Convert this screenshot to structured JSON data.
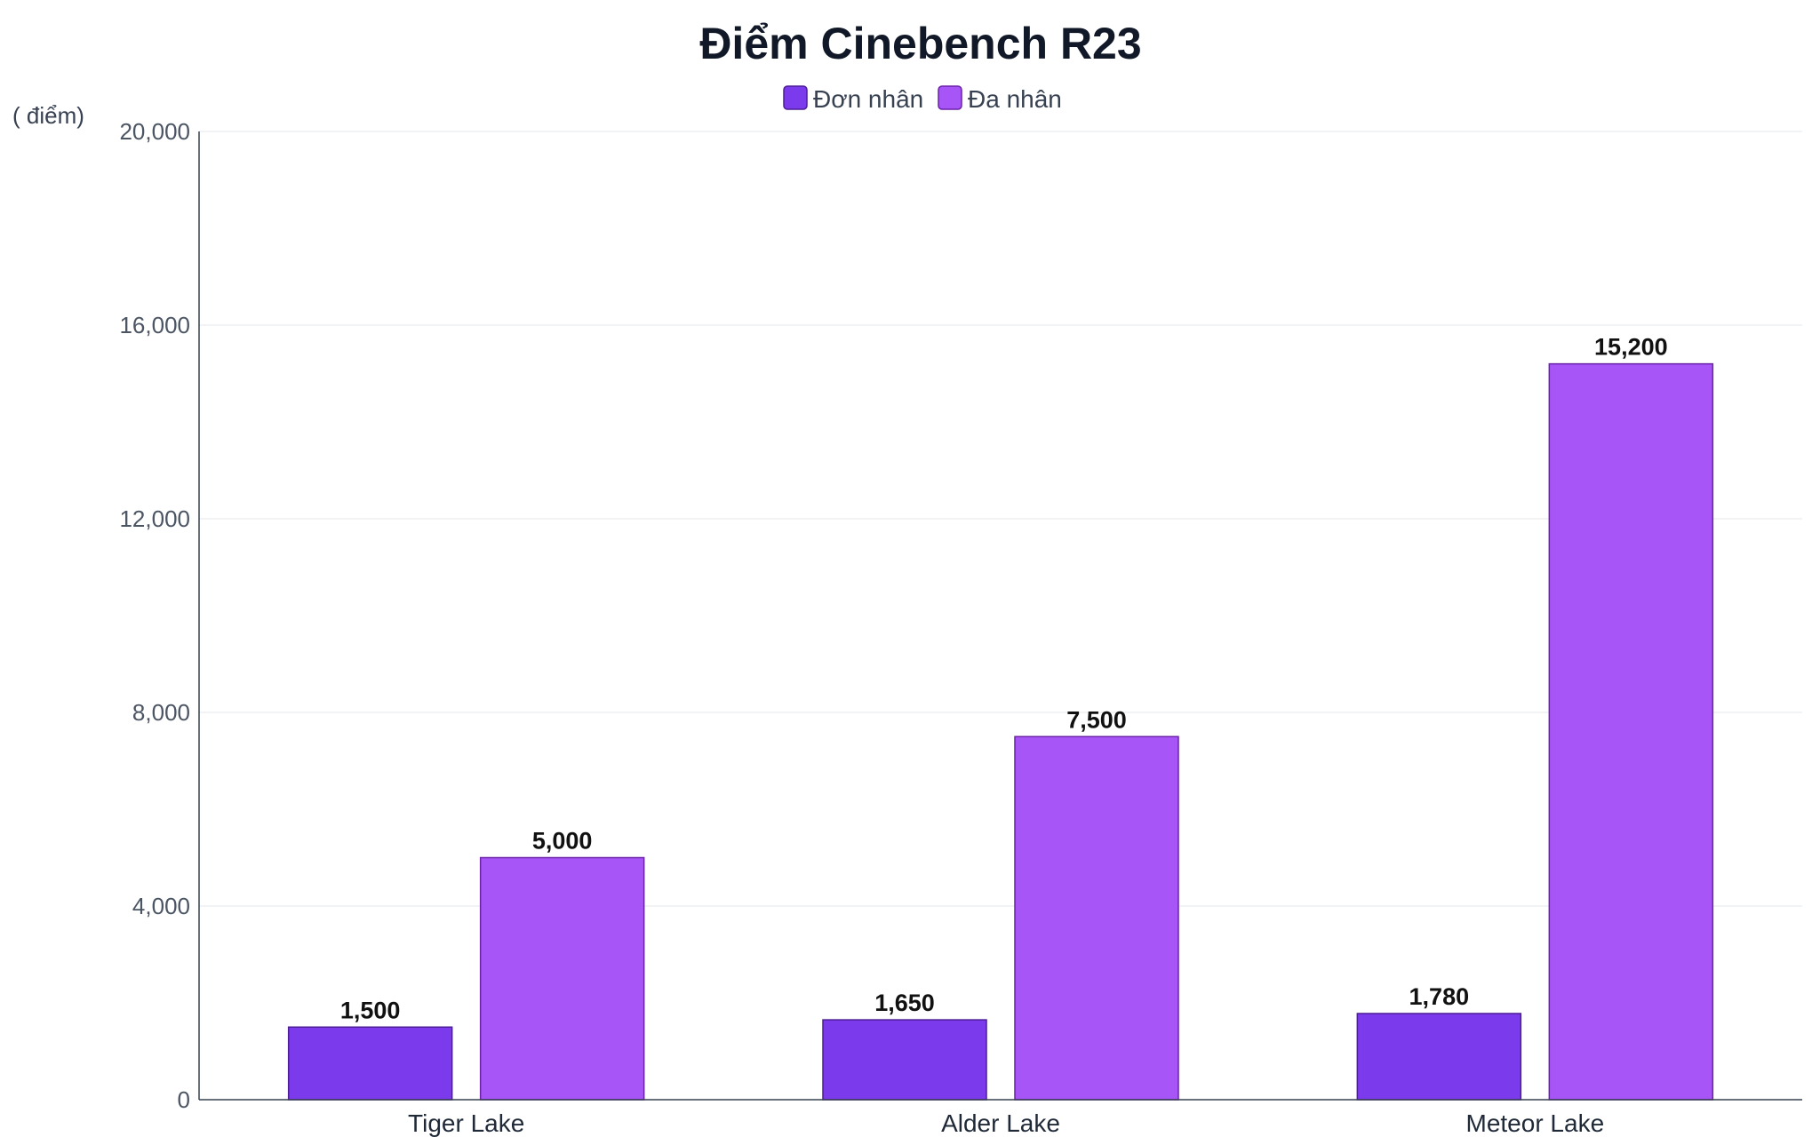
{
  "chart_data": {
    "type": "bar",
    "title": "Điểm Cinebench R23",
    "ylabel": "( điểm)",
    "xlabel": "",
    "categories": [
      "Tiger Lake",
      "Alder Lake",
      "Meteor Lake"
    ],
    "series": [
      {
        "name": "Đơn nhân",
        "values": [
          1500,
          1650,
          1780
        ],
        "color": "#7c3aed"
      },
      {
        "name": "Đa nhân",
        "values": [
          5000,
          7500,
          15200
        ],
        "color": "#a855f7"
      }
    ],
    "ylim": [
      0,
      20000
    ],
    "yticks": [
      0,
      4000,
      8000,
      12000,
      16000,
      20000
    ],
    "ytick_labels": [
      "0",
      "4,000",
      "8,000",
      "12,000",
      "16,000",
      "20,000"
    ],
    "value_labels": [
      [
        "1,500",
        "1,650",
        "1,780"
      ],
      [
        "5,000",
        "7,500",
        "15,200"
      ]
    ],
    "grid": true,
    "legend_position": "top-center"
  }
}
